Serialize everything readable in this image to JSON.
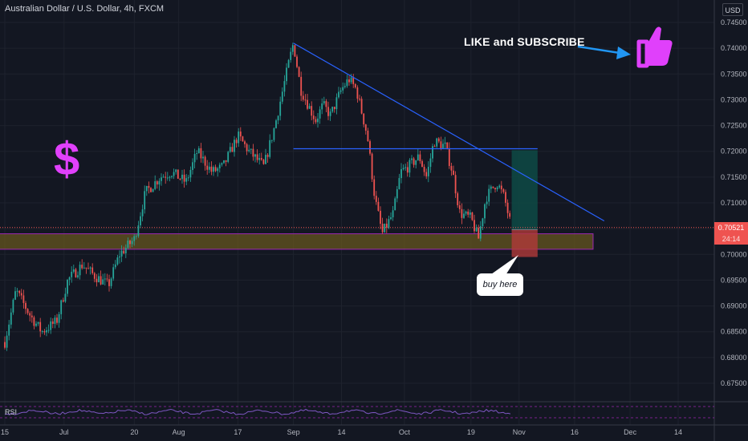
{
  "header": {
    "title": "Australian Dollar / U.S. Dollar, 4h, FXCM",
    "currency": "USD"
  },
  "price_tags": {
    "current": "0.70521",
    "countdown": "24:14"
  },
  "annotations": {
    "like_subscribe": "LIKE and SUBSCRIBE",
    "dollar_sign": "$",
    "callout": "buy here",
    "thumb_icon": "thumbs-up-icon",
    "arrow_icon": "arrow-right-icon"
  },
  "rsi": {
    "label": "RSI"
  },
  "colors": {
    "background": "#131722",
    "up_candle": "#26a69a",
    "down_candle": "#ef5350",
    "trendline": "#2962ff",
    "support_zone": "#6b5a1e",
    "target_zone": "#0e4a45",
    "stop_zone": "#b03a3a",
    "accent_magenta": "#e040fb",
    "arrow": "#2196f3"
  },
  "chart_data": {
    "type": "candlestick",
    "symbol": "AUDUSD",
    "timeframe": "4h",
    "x_tick_labels": [
      "15",
      "Jul",
      "20",
      "Aug",
      "17",
      "Sep",
      "14",
      "Oct",
      "19",
      "Nov",
      "16",
      "Dec",
      "14"
    ],
    "y_tick_labels": [
      "0.74500",
      "0.74000",
      "0.73500",
      "0.73000",
      "0.72500",
      "0.72000",
      "0.71500",
      "0.71000",
      "0.70500",
      "0.70000",
      "0.69500",
      "0.69000",
      "0.68500",
      "0.68000",
      "0.67500"
    ],
    "ylim": [
      0.6715,
      0.7485
    ],
    "close_path": [
      [
        "Jun 15",
        0.683
      ],
      [
        "Jun 18",
        0.693
      ],
      [
        "Jun 22",
        0.688
      ],
      [
        "Jun 25",
        0.685
      ],
      [
        "Jun 29",
        0.687
      ],
      [
        "Jul 2",
        0.695
      ],
      [
        "Jul 6",
        0.698
      ],
      [
        "Jul 9",
        0.696
      ],
      [
        "Jul 13",
        0.694
      ],
      [
        "Jul 16",
        0.7
      ],
      [
        "Jul 20",
        0.703
      ],
      [
        "Jul 23",
        0.712
      ],
      [
        "Jul 27",
        0.715
      ],
      [
        "Jul 30",
        0.716
      ],
      [
        "Aug 3",
        0.714
      ],
      [
        "Aug 6",
        0.72
      ],
      [
        "Aug 10",
        0.716
      ],
      [
        "Aug 13",
        0.717
      ],
      [
        "Aug 17",
        0.723
      ],
      [
        "Aug 20",
        0.72
      ],
      [
        "Aug 24",
        0.717
      ],
      [
        "Aug 27",
        0.725
      ],
      [
        "Aug 31",
        0.738
      ],
      [
        "Sep 1",
        0.741
      ],
      [
        "Sep 3",
        0.732
      ],
      [
        "Sep 7",
        0.726
      ],
      [
        "Sep 9",
        0.729
      ],
      [
        "Sep 11",
        0.727
      ],
      [
        "Sep 14",
        0.732
      ],
      [
        "Sep 16",
        0.734
      ],
      [
        "Sep 18",
        0.732
      ],
      [
        "Sep 21",
        0.723
      ],
      [
        "Sep 23",
        0.711
      ],
      [
        "Sep 25",
        0.704
      ],
      [
        "Sep 28",
        0.708
      ],
      [
        "Sep 30",
        0.716
      ],
      [
        "Oct 2",
        0.717
      ],
      [
        "Oct 5",
        0.719
      ],
      [
        "Oct 7",
        0.715
      ],
      [
        "Oct 9",
        0.722
      ],
      [
        "Oct 12",
        0.721
      ],
      [
        "Oct 14",
        0.716
      ],
      [
        "Oct 16",
        0.708
      ],
      [
        "Oct 19",
        0.707
      ],
      [
        "Oct 21",
        0.703
      ],
      [
        "Oct 23",
        0.711
      ],
      [
        "Oct 26",
        0.714
      ],
      [
        "Oct 28",
        0.711
      ],
      [
        "Oct 30",
        0.705
      ]
    ],
    "trendlines": [
      {
        "from": [
          "Sep 1",
          0.741
        ],
        "to": [
          "Nov 24",
          0.7065
        ]
      },
      {
        "from": [
          "Sep 1",
          0.7205
        ],
        "to": [
          "Nov 6",
          0.7205
        ]
      }
    ],
    "support_zone": {
      "from": "Jun 10",
      "to": "Nov 21",
      "low": 0.701,
      "high": 0.704
    },
    "position": {
      "entry": 0.7048,
      "target": 0.7202,
      "stop": 0.6995,
      "from": "Oct 30",
      "to": "Nov 6"
    },
    "current_price": 0.70521,
    "grid": true
  }
}
